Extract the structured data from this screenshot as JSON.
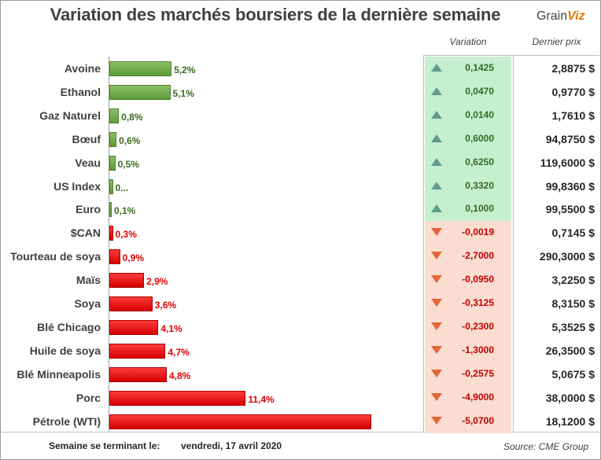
{
  "title": "Variation des marchés boursiers de la dernière semaine",
  "logo": {
    "part1": "Grain",
    "part2": "Viz"
  },
  "headers": {
    "variation": "Variation",
    "last_price": "Dernier prix"
  },
  "footer": {
    "label": "Semaine se terminant le:",
    "date": "vendredi, 17 avril 2020",
    "source": "Source: CME Group"
  },
  "colors": {
    "up": "#5c9a38",
    "down": "#d60000",
    "up_bg": "#c6efce",
    "down_bg": "#fadcd0"
  },
  "chart_data": {
    "type": "bar",
    "orientation": "horizontal",
    "title": "Variation des marchés boursiers de la dernière semaine",
    "categories": [
      "Avoine",
      "Ethanol",
      "Gaz Naturel",
      "Bœuf",
      "Veau",
      "US Index",
      "Euro",
      "$CAN",
      "Tourteau de soya",
      "Maïs",
      "Soya",
      "Blé Chicago",
      "Huile de soya",
      "Blé Minneapolis",
      "Porc",
      "Pétrole (WTI)"
    ],
    "values": [
      5.2,
      5.1,
      0.8,
      0.6,
      0.5,
      0.3,
      0.1,
      -0.3,
      -0.9,
      -2.9,
      -3.6,
      -4.1,
      -4.7,
      -4.8,
      -11.4,
      -21.9
    ],
    "labels": [
      "5,2%",
      "5,1%",
      "0,8%",
      "0,6%",
      "0,5%",
      "0...",
      "0,1%",
      "0,3%",
      "0,9%",
      "2,9%",
      "3,6%",
      "4,1%",
      "4,7%",
      "4,8%",
      "11,4%",
      ""
    ],
    "variation": [
      "0,1425",
      "0,0470",
      "0,0140",
      "0,6000",
      "0,6250",
      "0,3320",
      "0,1000",
      "-0,0019",
      "-2,7000",
      "-0,0950",
      "-0,3125",
      "-0,2300",
      "-1,3000",
      "-0,2575",
      "-4,9000",
      "-5,0700"
    ],
    "last_price": [
      "2,8875 $",
      "0,9770 $",
      "1,7610 $",
      "94,8750 $",
      "119,6000 $",
      "99,8360 $",
      "99,5500 $",
      "0,7145 $",
      "290,3000 $",
      "3,2250 $",
      "8,3150 $",
      "5,3525 $",
      "26,3500 $",
      "5,0675 $",
      "38,0000 $",
      "18,1200 $"
    ],
    "xlabel": "",
    "ylabel": ""
  }
}
